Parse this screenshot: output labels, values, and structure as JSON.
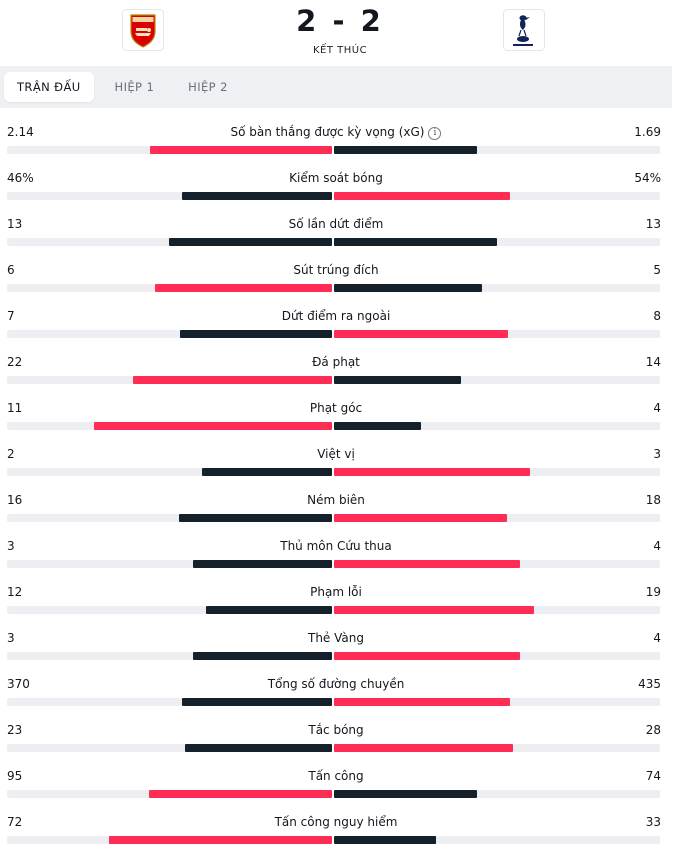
{
  "match": {
    "home_score": "2",
    "away_score": "2",
    "status": "KẾT THÚC",
    "home_logo_icon": "arsenal-crest-icon",
    "away_logo_icon": "tottenham-crest-icon"
  },
  "tabs": [
    {
      "label": "TRẬN ĐẤU",
      "active": true
    },
    {
      "label": "HIỆP 1",
      "active": false
    },
    {
      "label": "HIỆP 2",
      "active": false
    }
  ],
  "colors": {
    "highlight": "#ff2d55",
    "dark": "#14212b",
    "track": "#eceef1"
  },
  "stats": [
    {
      "label": "Số bàn thắng được kỳ vọng (xG)",
      "home": "2.14",
      "away": "1.69",
      "home_share": 0.56,
      "away_share": 0.44,
      "info": true,
      "home_winner": true
    },
    {
      "label": "Kiểm soát bóng",
      "home": "46%",
      "away": "54%",
      "home_share": 0.46,
      "away_share": 0.54,
      "home_winner": false
    },
    {
      "label": "Số lần dứt điểm",
      "home": "13",
      "away": "13",
      "home_share": 0.5,
      "away_share": 0.5,
      "home_winner": null
    },
    {
      "label": "Sút trúng đích",
      "home": "6",
      "away": "5",
      "home_share": 0.545,
      "away_share": 0.455,
      "home_winner": true
    },
    {
      "label": "Dứt điểm ra ngoài",
      "home": "7",
      "away": "8",
      "home_share": 0.467,
      "away_share": 0.533,
      "home_winner": false
    },
    {
      "label": "Đá phạt",
      "home": "22",
      "away": "14",
      "home_share": 0.611,
      "away_share": 0.389,
      "home_winner": true
    },
    {
      "label": "Phạt góc",
      "home": "11",
      "away": "4",
      "home_share": 0.733,
      "away_share": 0.267,
      "home_winner": true
    },
    {
      "label": "Việt vị",
      "home": "2",
      "away": "3",
      "home_share": 0.4,
      "away_share": 0.6,
      "home_winner": false
    },
    {
      "label": "Ném biên",
      "home": "16",
      "away": "18",
      "home_share": 0.47,
      "away_share": 0.53,
      "home_winner": false
    },
    {
      "label": "Thủ môn Cứu thua",
      "home": "3",
      "away": "4",
      "home_share": 0.429,
      "away_share": 0.571,
      "home_winner": false
    },
    {
      "label": "Phạm lỗi",
      "home": "12",
      "away": "19",
      "home_share": 0.387,
      "away_share": 0.613,
      "home_winner": false
    },
    {
      "label": "Thẻ Vàng",
      "home": "3",
      "away": "4",
      "home_share": 0.429,
      "away_share": 0.571,
      "home_winner": false
    },
    {
      "label": "Tổng số đường chuyền",
      "home": "370",
      "away": "435",
      "home_share": 0.46,
      "away_share": 0.54,
      "home_winner": false
    },
    {
      "label": "Tắc bóng",
      "home": "23",
      "away": "28",
      "home_share": 0.451,
      "away_share": 0.549,
      "home_winner": false
    },
    {
      "label": "Tấn công",
      "home": "95",
      "away": "74",
      "home_share": 0.562,
      "away_share": 0.438,
      "home_winner": true
    },
    {
      "label": "Tấn công nguy hiểm",
      "home": "72",
      "away": "33",
      "home_share": 0.686,
      "away_share": 0.314,
      "home_winner": true
    }
  ]
}
